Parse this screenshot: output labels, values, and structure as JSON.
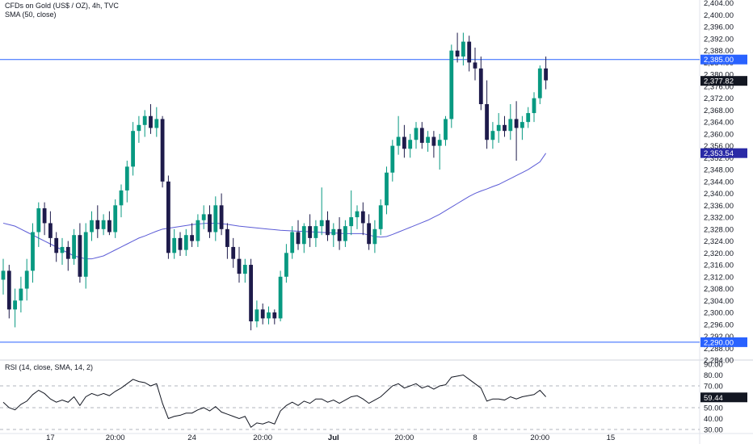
{
  "legend": {
    "main_title": "CFDs on Gold (US$ / OZ), 4h, TVC",
    "sma_title": "SMA (50, close)",
    "rsi_title": "RSI (14, close, SMA, 14, 2)"
  },
  "colors": {
    "up": "#089981",
    "down": "#1e1b4b",
    "sma": "#5b5bd6",
    "hline": "#2962ff",
    "rsi": "#131722",
    "current_tag": "#131722",
    "sma_tag": "#2a2aa6",
    "hline_tag": "#2962ff"
  },
  "chart_data": [
    {
      "type": "candlestick",
      "title": "CFDs on Gold (US$ / OZ), 4h, TVC",
      "x_ticks": [
        "17",
        "20:00",
        "24",
        "20:00",
        "Jul",
        "20:00",
        "8",
        "20:00",
        "15"
      ],
      "y_ticks": [
        "2,284.00",
        "2,288.00",
        "2,292.00",
        "2,296.00",
        "2,300.00",
        "2,304.00",
        "2,308.00",
        "2,312.00",
        "2,316.00",
        "2,320.00",
        "2,324.00",
        "2,328.00",
        "2,332.00",
        "2,336.00",
        "2,340.00",
        "2,344.00",
        "2,348.00",
        "2,352.00",
        "2,356.00",
        "2,360.00",
        "2,364.00",
        "2,368.00",
        "2,372.00",
        "2,376.00",
        "2,380.00",
        "2,384.00",
        "2,388.00",
        "2,392.00",
        "2,396.00",
        "2,400.00",
        "2,404.00"
      ],
      "ylim": [
        2284,
        2405
      ],
      "horizontal_lines": [
        {
          "value": 2385.0,
          "label": "2,385.00"
        },
        {
          "value": 2290.0,
          "label": "2,290.00"
        }
      ],
      "price_tags": [
        {
          "value": 2377.82,
          "label": "2,377.82",
          "kind": "current"
        },
        {
          "value": 2353.54,
          "label": "2,353.54",
          "kind": "sma"
        }
      ],
      "candles": [
        {
          "o": 2311,
          "h": 2318,
          "l": 2306,
          "c": 2314
        },
        {
          "o": 2314,
          "h": 2316,
          "l": 2298,
          "c": 2301
        },
        {
          "o": 2301,
          "h": 2308,
          "l": 2295,
          "c": 2304
        },
        {
          "o": 2304,
          "h": 2312,
          "l": 2300,
          "c": 2308
        },
        {
          "o": 2308,
          "h": 2318,
          "l": 2304,
          "c": 2314
        },
        {
          "o": 2314,
          "h": 2330,
          "l": 2310,
          "c": 2327
        },
        {
          "o": 2327,
          "h": 2337,
          "l": 2322,
          "c": 2335
        },
        {
          "o": 2335,
          "h": 2337,
          "l": 2326,
          "c": 2330
        },
        {
          "o": 2330,
          "h": 2334,
          "l": 2322,
          "c": 2325
        },
        {
          "o": 2325,
          "h": 2327,
          "l": 2317,
          "c": 2320
        },
        {
          "o": 2320,
          "h": 2325,
          "l": 2316,
          "c": 2322
        },
        {
          "o": 2322,
          "h": 2324,
          "l": 2314,
          "c": 2318
        },
        {
          "o": 2318,
          "h": 2328,
          "l": 2316,
          "c": 2326
        },
        {
          "o": 2326,
          "h": 2330,
          "l": 2310,
          "c": 2312
        },
        {
          "o": 2312,
          "h": 2330,
          "l": 2308,
          "c": 2327
        },
        {
          "o": 2327,
          "h": 2334,
          "l": 2324,
          "c": 2331
        },
        {
          "o": 2331,
          "h": 2336,
          "l": 2325,
          "c": 2328
        },
        {
          "o": 2328,
          "h": 2333,
          "l": 2326,
          "c": 2331
        },
        {
          "o": 2331,
          "h": 2334,
          "l": 2326,
          "c": 2327
        },
        {
          "o": 2327,
          "h": 2338,
          "l": 2325,
          "c": 2336
        },
        {
          "o": 2336,
          "h": 2343,
          "l": 2332,
          "c": 2341
        },
        {
          "o": 2341,
          "h": 2351,
          "l": 2337,
          "c": 2349
        },
        {
          "o": 2349,
          "h": 2364,
          "l": 2346,
          "c": 2361
        },
        {
          "o": 2361,
          "h": 2366,
          "l": 2357,
          "c": 2363
        },
        {
          "o": 2363,
          "h": 2368,
          "l": 2359,
          "c": 2366
        },
        {
          "o": 2366,
          "h": 2370,
          "l": 2360,
          "c": 2362
        },
        {
          "o": 2362,
          "h": 2369,
          "l": 2359,
          "c": 2365
        },
        {
          "o": 2365,
          "h": 2366,
          "l": 2342,
          "c": 2344
        },
        {
          "o": 2344,
          "h": 2346,
          "l": 2318,
          "c": 2320
        },
        {
          "o": 2320,
          "h": 2328,
          "l": 2318,
          "c": 2325
        },
        {
          "o": 2325,
          "h": 2327,
          "l": 2319,
          "c": 2321
        },
        {
          "o": 2321,
          "h": 2328,
          "l": 2319,
          "c": 2326
        },
        {
          "o": 2326,
          "h": 2330,
          "l": 2322,
          "c": 2324
        },
        {
          "o": 2324,
          "h": 2333,
          "l": 2322,
          "c": 2331
        },
        {
          "o": 2331,
          "h": 2336,
          "l": 2328,
          "c": 2333
        },
        {
          "o": 2333,
          "h": 2336,
          "l": 2325,
          "c": 2327
        },
        {
          "o": 2327,
          "h": 2339,
          "l": 2324,
          "c": 2336
        },
        {
          "o": 2336,
          "h": 2340,
          "l": 2326,
          "c": 2328
        },
        {
          "o": 2328,
          "h": 2330,
          "l": 2318,
          "c": 2322
        },
        {
          "o": 2322,
          "h": 2325,
          "l": 2315,
          "c": 2318
        },
        {
          "o": 2318,
          "h": 2322,
          "l": 2310,
          "c": 2313
        },
        {
          "o": 2313,
          "h": 2318,
          "l": 2310,
          "c": 2316
        },
        {
          "o": 2316,
          "h": 2318,
          "l": 2294,
          "c": 2297
        },
        {
          "o": 2297,
          "h": 2304,
          "l": 2295,
          "c": 2301
        },
        {
          "o": 2301,
          "h": 2303,
          "l": 2296,
          "c": 2298
        },
        {
          "o": 2298,
          "h": 2302,
          "l": 2296,
          "c": 2300
        },
        {
          "o": 2300,
          "h": 2301,
          "l": 2296,
          "c": 2298
        },
        {
          "o": 2298,
          "h": 2314,
          "l": 2297,
          "c": 2312
        },
        {
          "o": 2312,
          "h": 2323,
          "l": 2310,
          "c": 2320
        },
        {
          "o": 2320,
          "h": 2329,
          "l": 2318,
          "c": 2327
        },
        {
          "o": 2327,
          "h": 2331,
          "l": 2321,
          "c": 2323
        },
        {
          "o": 2323,
          "h": 2330,
          "l": 2320,
          "c": 2329
        },
        {
          "o": 2329,
          "h": 2333,
          "l": 2322,
          "c": 2325
        },
        {
          "o": 2325,
          "h": 2331,
          "l": 2322,
          "c": 2329
        },
        {
          "o": 2329,
          "h": 2342,
          "l": 2326,
          "c": 2331
        },
        {
          "o": 2331,
          "h": 2334,
          "l": 2324,
          "c": 2326
        },
        {
          "o": 2326,
          "h": 2330,
          "l": 2322,
          "c": 2328
        },
        {
          "o": 2328,
          "h": 2332,
          "l": 2321,
          "c": 2324
        },
        {
          "o": 2324,
          "h": 2331,
          "l": 2322,
          "c": 2329
        },
        {
          "o": 2329,
          "h": 2341,
          "l": 2326,
          "c": 2332
        },
        {
          "o": 2332,
          "h": 2336,
          "l": 2328,
          "c": 2334
        },
        {
          "o": 2334,
          "h": 2337,
          "l": 2326,
          "c": 2330
        },
        {
          "o": 2330,
          "h": 2333,
          "l": 2321,
          "c": 2323
        },
        {
          "o": 2323,
          "h": 2331,
          "l": 2320,
          "c": 2328
        },
        {
          "o": 2328,
          "h": 2338,
          "l": 2326,
          "c": 2336
        },
        {
          "o": 2336,
          "h": 2349,
          "l": 2333,
          "c": 2347
        },
        {
          "o": 2347,
          "h": 2358,
          "l": 2344,
          "c": 2356
        },
        {
          "o": 2356,
          "h": 2366,
          "l": 2353,
          "c": 2359
        },
        {
          "o": 2359,
          "h": 2363,
          "l": 2352,
          "c": 2355
        },
        {
          "o": 2355,
          "h": 2360,
          "l": 2352,
          "c": 2358
        },
        {
          "o": 2358,
          "h": 2364,
          "l": 2355,
          "c": 2362
        },
        {
          "o": 2362,
          "h": 2364,
          "l": 2355,
          "c": 2357
        },
        {
          "o": 2357,
          "h": 2361,
          "l": 2354,
          "c": 2359
        },
        {
          "o": 2359,
          "h": 2361,
          "l": 2352,
          "c": 2356
        },
        {
          "o": 2356,
          "h": 2360,
          "l": 2348,
          "c": 2358
        },
        {
          "o": 2358,
          "h": 2366,
          "l": 2356,
          "c": 2365
        },
        {
          "o": 2365,
          "h": 2390,
          "l": 2362,
          "c": 2388
        },
        {
          "o": 2388,
          "h": 2394,
          "l": 2384,
          "c": 2386
        },
        {
          "o": 2386,
          "h": 2394,
          "l": 2383,
          "c": 2391
        },
        {
          "o": 2391,
          "h": 2393,
          "l": 2381,
          "c": 2384
        },
        {
          "o": 2384,
          "h": 2389,
          "l": 2378,
          "c": 2382
        },
        {
          "o": 2382,
          "h": 2386,
          "l": 2368,
          "c": 2370
        },
        {
          "o": 2370,
          "h": 2378,
          "l": 2355,
          "c": 2358
        },
        {
          "o": 2358,
          "h": 2364,
          "l": 2355,
          "c": 2361
        },
        {
          "o": 2361,
          "h": 2367,
          "l": 2357,
          "c": 2363
        },
        {
          "o": 2363,
          "h": 2366,
          "l": 2359,
          "c": 2361
        },
        {
          "o": 2361,
          "h": 2370,
          "l": 2358,
          "c": 2365
        },
        {
          "o": 2365,
          "h": 2371,
          "l": 2351,
          "c": 2362
        },
        {
          "o": 2362,
          "h": 2366,
          "l": 2358,
          "c": 2364
        },
        {
          "o": 2364,
          "h": 2369,
          "l": 2362,
          "c": 2367
        },
        {
          "o": 2367,
          "h": 2374,
          "l": 2364,
          "c": 2372
        },
        {
          "o": 2372,
          "h": 2383,
          "l": 2370,
          "c": 2382
        },
        {
          "o": 2382,
          "h": 2386,
          "l": 2375,
          "c": 2378
        }
      ],
      "sma": [
        2330,
        2329.5,
        2329,
        2328,
        2327,
        2326,
        2325,
        2324,
        2323,
        2322,
        2321,
        2320,
        2319,
        2318.5,
        2318,
        2318,
        2318.5,
        2319,
        2320,
        2321,
        2322,
        2323,
        2324,
        2325,
        2325.7,
        2326.5,
        2327.3,
        2328,
        2328.3,
        2328.6,
        2328.9,
        2329.2,
        2329.5,
        2329.7,
        2329.9,
        2330,
        2330,
        2329.8,
        2329.6,
        2329.3,
        2329,
        2328.8,
        2328.6,
        2328.4,
        2328.2,
        2328,
        2327.8,
        2327.6,
        2327.5,
        2327.4,
        2327.3,
        2327.2,
        2327.1,
        2327,
        2326.9,
        2326.8,
        2326.7,
        2326.6,
        2326.5,
        2326.5,
        2326.5,
        2326.5,
        2326,
        2325.5,
        2325.3,
        2325.5,
        2326.2,
        2327,
        2327.8,
        2328.6,
        2329.4,
        2330.2,
        2331,
        2332,
        2333,
        2334.2,
        2335.4,
        2336.6,
        2337.8,
        2339,
        2340,
        2340.8,
        2341.5,
        2342.3,
        2343,
        2344,
        2345,
        2346,
        2347,
        2348,
        2349.3,
        2350.6,
        2353.5
      ]
    },
    {
      "type": "line",
      "title": "RSI (14, close, SMA, 14, 2)",
      "y_ticks": [
        "30.00",
        "40.00",
        "50.00",
        "70.00",
        "80.00",
        "90.00"
      ],
      "ylim": [
        27,
        93
      ],
      "bands": [
        70,
        50,
        30
      ],
      "current": {
        "value": 59.44,
        "label": "59.44"
      },
      "values": [
        55,
        50,
        48,
        53,
        56,
        62,
        66,
        63,
        58,
        55,
        57,
        55,
        60,
        52,
        60,
        63,
        61,
        63,
        61,
        65,
        68,
        72,
        76,
        74,
        73,
        70,
        72,
        54,
        40,
        42,
        43,
        45,
        45,
        48,
        50,
        47,
        51,
        46,
        44,
        42,
        40,
        42,
        32,
        36,
        35,
        37,
        35,
        47,
        52,
        55,
        52,
        56,
        54,
        58,
        58,
        55,
        57,
        54,
        57,
        60,
        61,
        58,
        54,
        57,
        60,
        65,
        70,
        72,
        68,
        70,
        72,
        68,
        70,
        67,
        70,
        71,
        78,
        79,
        80,
        76,
        72,
        68,
        56,
        58,
        58,
        57,
        60,
        58,
        60,
        61,
        62,
        66,
        60
      ]
    }
  ]
}
